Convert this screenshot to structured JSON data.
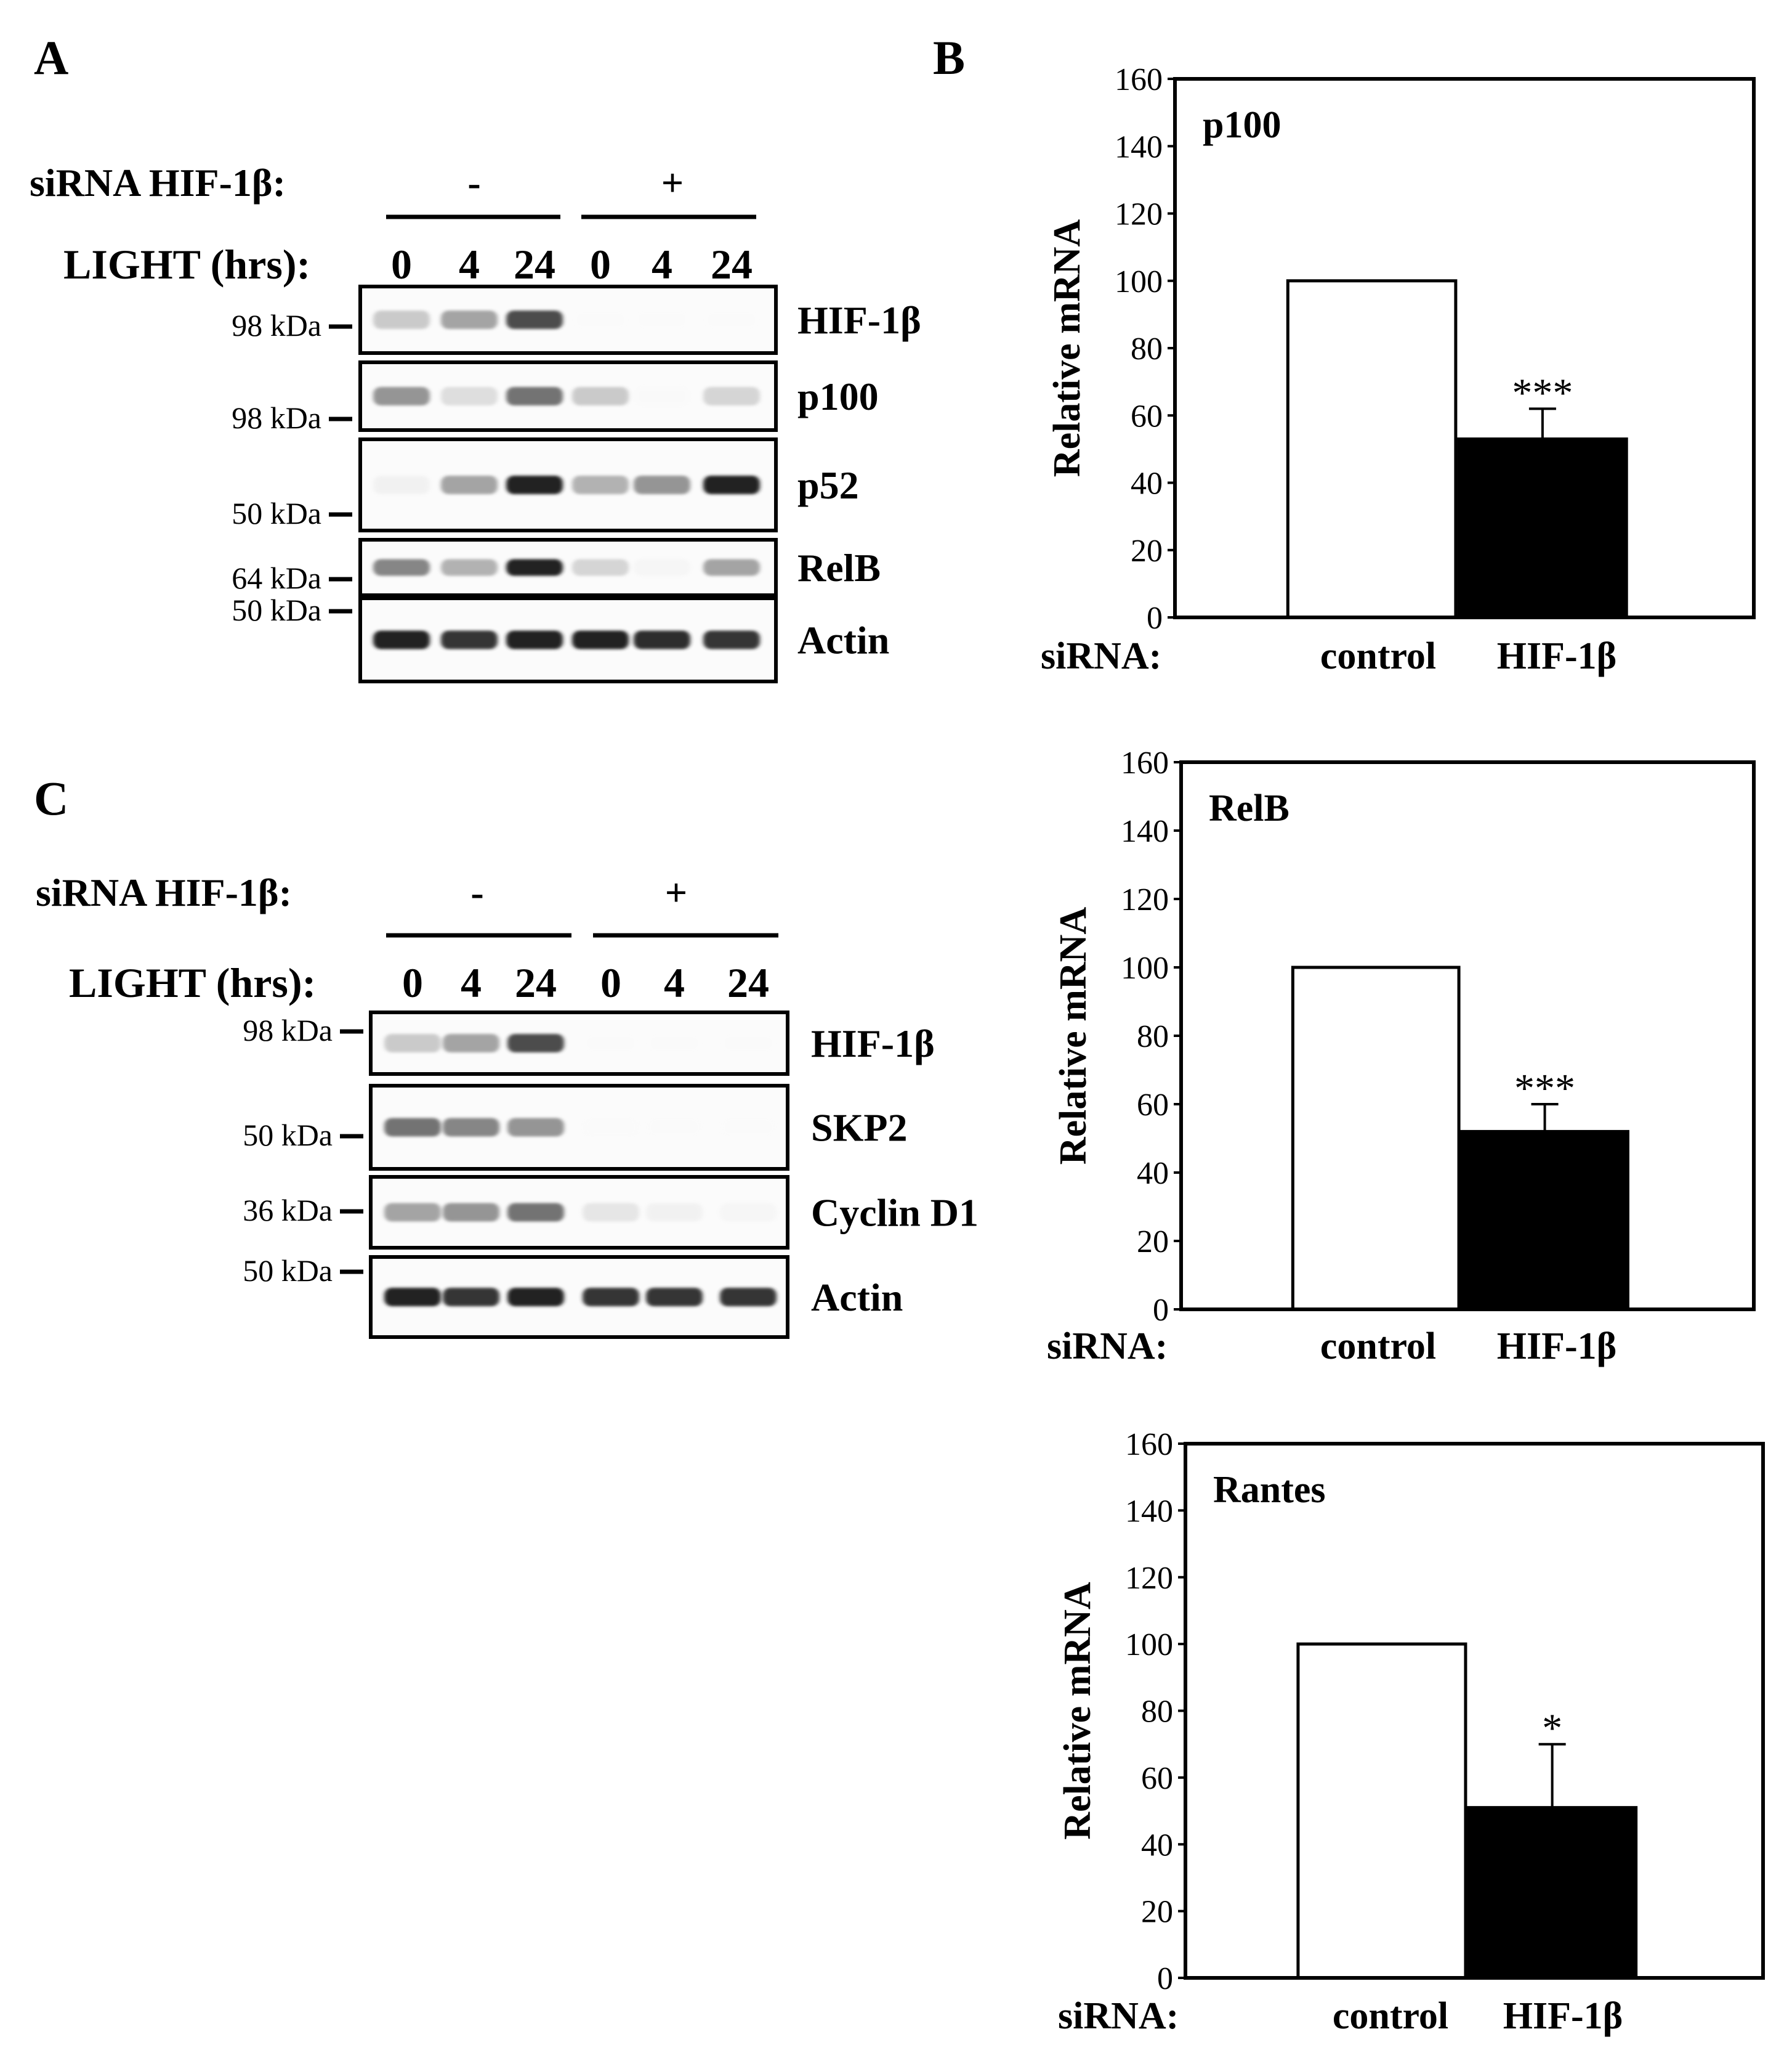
{
  "panels": {
    "A": {
      "letter": "A",
      "sirna_label": "siRNA HIF-1β:",
      "sirna_signs": [
        "-",
        "+"
      ],
      "light_label": "LIGHT (hrs):",
      "timepoints": [
        "0",
        "4",
        "24",
        "0",
        "4",
        "24"
      ],
      "blots": [
        {
          "name": "HIF-1β",
          "markers": [
            "98 kDa"
          ],
          "intensity": [
            0.45,
            0.6,
            0.85,
            0.02,
            0.02,
            0.02
          ]
        },
        {
          "name": "p100",
          "markers": [
            "98 kDa"
          ],
          "intensity": [
            0.65,
            0.35,
            0.75,
            0.45,
            0.08,
            0.4
          ]
        },
        {
          "name": "p52",
          "markers": [
            "50 kDa"
          ],
          "intensity": [
            0.2,
            0.6,
            0.95,
            0.55,
            0.65,
            0.95
          ]
        },
        {
          "name": "RelB",
          "markers": [
            "64 kDa"
          ],
          "intensity": [
            0.7,
            0.55,
            0.95,
            0.4,
            0.15,
            0.6
          ]
        },
        {
          "name": "Actin",
          "markers": [
            "50 kDa"
          ],
          "intensity": [
            0.95,
            0.9,
            0.95,
            0.95,
            0.92,
            0.9
          ]
        }
      ]
    },
    "C": {
      "letter": "C",
      "sirna_label": "siRNA HIF-1β:",
      "sirna_signs": [
        "-",
        "+"
      ],
      "light_label": "LIGHT (hrs):",
      "timepoints": [
        "0",
        "4",
        "24",
        "0",
        "4",
        "24"
      ],
      "blots": [
        {
          "name": "HIF-1β",
          "markers": [
            "98 kDa"
          ],
          "intensity": [
            0.45,
            0.6,
            0.85,
            0.02,
            0.02,
            0.02
          ]
        },
        {
          "name": "SKP2",
          "markers": [
            "50 kDa"
          ],
          "intensity": [
            0.75,
            0.7,
            0.65,
            0.05,
            0.03,
            0.03
          ]
        },
        {
          "name": "Cyclin D1",
          "markers": [
            "36 kDa"
          ],
          "intensity": [
            0.6,
            0.65,
            0.75,
            0.3,
            0.2,
            0.15
          ]
        },
        {
          "name": "Actin",
          "markers": [
            "50 kDa"
          ],
          "intensity": [
            0.95,
            0.9,
            0.95,
            0.9,
            0.9,
            0.9
          ]
        }
      ]
    },
    "B": {
      "letter": "B"
    }
  },
  "chart_data": [
    {
      "type": "bar",
      "title": "p100",
      "ylabel": "Relative mRNA",
      "xlabel_prefix": "siRNA:",
      "categories": [
        "control",
        "HIF-1β"
      ],
      "values": [
        100,
        53
      ],
      "errors": [
        0,
        9
      ],
      "significance": [
        "",
        "***"
      ],
      "fills": [
        "#ffffff",
        "#000000"
      ],
      "ylim": [
        0,
        160
      ],
      "yticks": [
        "0",
        "20",
        "40",
        "60",
        "80",
        "100",
        "120",
        "140",
        "160"
      ]
    },
    {
      "type": "bar",
      "title": "RelB",
      "ylabel": "Relative mRNA",
      "xlabel_prefix": "siRNA:",
      "categories": [
        "control",
        "HIF-1β"
      ],
      "values": [
        100,
        52
      ],
      "errors": [
        0,
        8
      ],
      "significance": [
        "",
        "***"
      ],
      "fills": [
        "#ffffff",
        "#000000"
      ],
      "ylim": [
        0,
        160
      ],
      "yticks": [
        "0",
        "20",
        "40",
        "60",
        "80",
        "100",
        "120",
        "140",
        "160"
      ]
    },
    {
      "type": "bar",
      "title": "Rantes",
      "ylabel": "Relative mRNA",
      "xlabel_prefix": "siRNA:",
      "categories": [
        "control",
        "HIF-1β"
      ],
      "values": [
        100,
        51
      ],
      "errors": [
        0,
        19
      ],
      "significance": [
        "",
        "*"
      ],
      "fills": [
        "#ffffff",
        "#000000"
      ],
      "ylim": [
        0,
        160
      ],
      "yticks": [
        "0",
        "20",
        "40",
        "60",
        "80",
        "100",
        "120",
        "140",
        "160"
      ]
    }
  ]
}
